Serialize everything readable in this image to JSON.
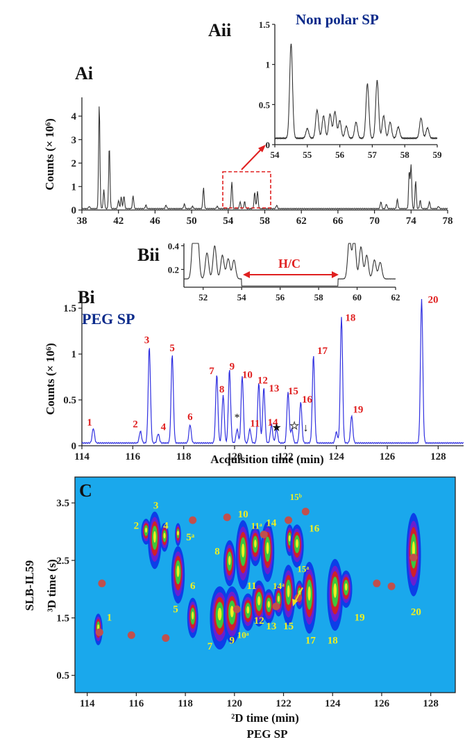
{
  "panels": {
    "ai": {
      "label": "Ai",
      "ylabel": "Counts (× 10⁶)"
    },
    "aii": {
      "label": "Aii",
      "phase": "Non polar SP"
    },
    "bii": {
      "label": "Bii",
      "annotation": "H/C"
    },
    "bi": {
      "label": "Bi",
      "phase": "PEG SP",
      "ylabel": "Counts (× 10⁶)",
      "xlabel": "Acquisition time (min)"
    },
    "c": {
      "label": "C",
      "column": "SLB-IL59",
      "ylabel": "³D time (s)",
      "xlabel": "²D time (min)",
      "phase": "PEG SP"
    }
  },
  "colors": {
    "trace_black": "#333333",
    "trace_blue": "#3030e0",
    "peak_label": "#e02020",
    "plot_bg": "#1aa8ec",
    "c_label": "#f0f020",
    "dot": "#c0504d"
  },
  "chart_data": [
    {
      "id": "Ai",
      "type": "line",
      "xlim": [
        38,
        78
      ],
      "xticks": [
        38,
        42,
        46,
        50,
        54,
        58,
        62,
        66,
        70,
        74,
        78
      ],
      "ylim": [
        0,
        4.8
      ],
      "yticks": [
        0,
        1,
        2,
        3,
        4
      ],
      "ylabel": "Counts (× 10⁶)",
      "baseline": 0.06,
      "peaks": [
        [
          38.8,
          0.1
        ],
        [
          39.9,
          4.45
        ],
        [
          40.4,
          0.8
        ],
        [
          41.0,
          2.65
        ],
        [
          42.0,
          0.35
        ],
        [
          42.3,
          0.5
        ],
        [
          42.6,
          0.55
        ],
        [
          43.6,
          0.55
        ],
        [
          45.0,
          0.15
        ],
        [
          47.2,
          0.15
        ],
        [
          49.2,
          0.2
        ],
        [
          50.1,
          0.1
        ],
        [
          51.3,
          0.9
        ],
        [
          52.8,
          0.1
        ],
        [
          54.4,
          1.15
        ],
        [
          55.3,
          0.3
        ],
        [
          55.8,
          0.3
        ],
        [
          56.9,
          0.7
        ],
        [
          57.2,
          0.75
        ],
        [
          59.3,
          0.15
        ],
        [
          70.7,
          0.3
        ],
        [
          71.3,
          0.2
        ],
        [
          72.5,
          0.4
        ],
        [
          73.8,
          1.6
        ],
        [
          74.0,
          1.85
        ],
        [
          74.5,
          1.2
        ],
        [
          75.0,
          0.35
        ],
        [
          76.0,
          0.3
        ],
        [
          77.0,
          0.1
        ]
      ]
    },
    {
      "id": "Aii",
      "type": "line",
      "xlim": [
        54,
        59
      ],
      "xticks": [
        54,
        55,
        56,
        57,
        58,
        59
      ],
      "ylim": [
        0,
        1.5
      ],
      "yticks": [
        0,
        0.5,
        1,
        1.5
      ],
      "baseline": 0.08,
      "peaks": [
        [
          54.5,
          1.18
        ],
        [
          55.0,
          0.12
        ],
        [
          55.3,
          0.35
        ],
        [
          55.5,
          0.28
        ],
        [
          55.7,
          0.3
        ],
        [
          55.85,
          0.33
        ],
        [
          56.0,
          0.22
        ],
        [
          56.2,
          0.15
        ],
        [
          56.5,
          0.2
        ],
        [
          56.85,
          0.68
        ],
        [
          57.15,
          0.72
        ],
        [
          57.35,
          0.28
        ],
        [
          57.55,
          0.2
        ],
        [
          57.8,
          0.14
        ],
        [
          58.5,
          0.25
        ],
        [
          58.7,
          0.13
        ]
      ]
    },
    {
      "id": "Bii",
      "type": "line",
      "xlim": [
        51,
        62
      ],
      "xticks": [
        52,
        54,
        56,
        58,
        60,
        62
      ],
      "ylim": [
        0.05,
        0.42
      ],
      "yticks": [
        0.2,
        0.4
      ],
      "annotation": "H/C",
      "heart_cut": [
        54,
        59
      ],
      "baseline": 0.12,
      "peaks": [
        [
          51.5,
          0.42
        ],
        [
          51.7,
          0.38
        ],
        [
          52.2,
          0.22
        ],
        [
          52.6,
          0.28
        ],
        [
          53.0,
          0.2
        ],
        [
          53.3,
          0.17
        ],
        [
          53.6,
          0.16
        ],
        [
          59.6,
          0.34
        ],
        [
          59.85,
          0.35
        ],
        [
          60.2,
          0.27
        ],
        [
          60.5,
          0.2
        ],
        [
          60.9,
          0.16
        ],
        [
          61.2,
          0.14
        ]
      ]
    },
    {
      "id": "Bi",
      "type": "line",
      "title": "PEG SP",
      "xlabel": "Acquisition time (min)",
      "ylabel": "Counts (× 10⁶)",
      "xlim": [
        114,
        129
      ],
      "xticks": [
        114,
        116,
        118,
        120,
        122,
        124,
        126,
        128
      ],
      "ylim": [
        0,
        1.6
      ],
      "yticks": [
        0,
        0.5,
        1,
        1.5
      ],
      "baseline": 0.03,
      "peaks": [
        [
          114.45,
          0.16
        ],
        [
          116.3,
          0.13
        ],
        [
          116.65,
          1.05
        ],
        [
          117.0,
          0.1
        ],
        [
          117.55,
          0.97
        ],
        [
          118.25,
          0.2
        ],
        [
          119.3,
          0.75
        ],
        [
          119.55,
          0.52
        ],
        [
          119.8,
          0.8
        ],
        [
          120.1,
          0.15
        ],
        [
          120.3,
          0.73
        ],
        [
          120.6,
          0.15
        ],
        [
          120.95,
          0.66
        ],
        [
          121.15,
          0.6
        ],
        [
          121.45,
          0.2
        ],
        [
          121.65,
          0.15
        ],
        [
          122.1,
          0.55
        ],
        [
          122.25,
          0.15
        ],
        [
          122.6,
          0.45
        ],
        [
          123.1,
          0.96
        ],
        [
          124.0,
          0.12
        ],
        [
          124.2,
          1.38
        ],
        [
          124.6,
          0.3
        ],
        [
          127.35,
          1.58
        ]
      ],
      "peak_labels": [
        {
          "n": "1",
          "x": 114.3,
          "y": 0.22
        },
        {
          "n": "2",
          "x": 116.1,
          "y": 0.2
        },
        {
          "n": "3",
          "x": 116.55,
          "y": 1.12
        },
        {
          "n": "4",
          "x": 117.2,
          "y": 0.17
        },
        {
          "n": "5",
          "x": 117.55,
          "y": 1.03
        },
        {
          "n": "6",
          "x": 118.25,
          "y": 0.28
        },
        {
          "n": "7",
          "x": 119.1,
          "y": 0.78
        },
        {
          "n": "8",
          "x": 119.5,
          "y": 0.58
        },
        {
          "n": "9",
          "x": 119.9,
          "y": 0.83
        },
        {
          "n": "10",
          "x": 120.5,
          "y": 0.74
        },
        {
          "n": "11",
          "x": 120.8,
          "y": 0.21
        },
        {
          "n": "12",
          "x": 121.1,
          "y": 0.68
        },
        {
          "n": "13",
          "x": 121.55,
          "y": 0.59
        },
        {
          "n": "14",
          "x": 121.5,
          "y": 0.22
        },
        {
          "n": "15",
          "x": 122.3,
          "y": 0.56
        },
        {
          "n": "16",
          "x": 122.85,
          "y": 0.47
        },
        {
          "n": "17",
          "x": 123.45,
          "y": 1.0
        },
        {
          "n": "18",
          "x": 124.55,
          "y": 1.36
        },
        {
          "n": "19",
          "x": 124.85,
          "y": 0.36
        },
        {
          "n": "20",
          "x": 127.8,
          "y": 1.56
        }
      ],
      "markers": [
        {
          "symbol": "*",
          "x": 120.1,
          "y": 0.27,
          "style": "black-star"
        },
        {
          "symbol": "★",
          "x": 121.65,
          "y": 0.16,
          "style": "black-filled-star"
        },
        {
          "symbol": "☆",
          "x": 122.35,
          "y": 0.18,
          "style": "white-star"
        },
        {
          "symbol": "↓",
          "x": 122.8,
          "y": 0.16,
          "style": "black-arrow"
        }
      ]
    },
    {
      "id": "C",
      "type": "heatmap",
      "xlabel": "²D time (min)",
      "ylabel": "³D time (s)",
      "xlim": [
        113.5,
        129
      ],
      "xticks": [
        114,
        116,
        118,
        120,
        122,
        124,
        126,
        128
      ],
      "ylim": [
        0.2,
        3.95
      ],
      "yticks": [
        0.5,
        1.5,
        2.5,
        3.5
      ],
      "peaks": [
        {
          "x": 114.45,
          "y": 1.3,
          "w": 0.35,
          "h": 0.55
        },
        {
          "x": 116.4,
          "y": 3.0,
          "w": 0.4,
          "h": 0.45
        },
        {
          "x": 116.75,
          "y": 2.85,
          "w": 0.55,
          "h": 1.0
        },
        {
          "x": 117.15,
          "y": 2.9,
          "w": 0.35,
          "h": 0.5
        },
        {
          "x": 117.7,
          "y": 2.95,
          "w": 0.25,
          "h": 0.4
        },
        {
          "x": 117.7,
          "y": 2.25,
          "w": 0.55,
          "h": 1.0
        },
        {
          "x": 118.3,
          "y": 1.5,
          "w": 0.45,
          "h": 0.7
        },
        {
          "x": 119.4,
          "y": 1.5,
          "w": 0.8,
          "h": 1.1
        },
        {
          "x": 119.9,
          "y": 1.55,
          "w": 0.7,
          "h": 1.0
        },
        {
          "x": 119.8,
          "y": 2.45,
          "w": 0.5,
          "h": 0.8
        },
        {
          "x": 120.35,
          "y": 2.6,
          "w": 0.6,
          "h": 1.2
        },
        {
          "x": 120.55,
          "y": 1.6,
          "w": 0.55,
          "h": 0.65
        },
        {
          "x": 120.85,
          "y": 2.75,
          "w": 0.5,
          "h": 0.7
        },
        {
          "x": 121.0,
          "y": 1.75,
          "w": 0.6,
          "h": 0.8
        },
        {
          "x": 121.35,
          "y": 2.65,
          "w": 0.55,
          "h": 1.05
        },
        {
          "x": 121.4,
          "y": 1.7,
          "w": 0.5,
          "h": 0.6
        },
        {
          "x": 121.8,
          "y": 1.8,
          "w": 0.4,
          "h": 0.55
        },
        {
          "x": 122.2,
          "y": 1.9,
          "w": 0.55,
          "h": 1.05
        },
        {
          "x": 122.25,
          "y": 2.85,
          "w": 0.35,
          "h": 0.55
        },
        {
          "x": 122.55,
          "y": 2.75,
          "w": 0.55,
          "h": 0.75
        },
        {
          "x": 122.65,
          "y": 1.9,
          "w": 0.35,
          "h": 0.5
        },
        {
          "x": 123.05,
          "y": 1.85,
          "w": 0.6,
          "h": 1.25
        },
        {
          "x": 124.1,
          "y": 1.9,
          "w": 0.65,
          "h": 1.25
        },
        {
          "x": 124.55,
          "y": 2.0,
          "w": 0.5,
          "h": 0.65
        },
        {
          "x": 127.3,
          "y": 2.6,
          "w": 0.6,
          "h": 1.45
        }
      ],
      "dots": [
        [
          114.6,
          2.1
        ],
        [
          114.5,
          1.25
        ],
        [
          115.8,
          1.2
        ],
        [
          117.2,
          1.15
        ],
        [
          118.3,
          3.2
        ],
        [
          119.7,
          3.25
        ],
        [
          122.2,
          3.2
        ],
        [
          122.9,
          3.35
        ],
        [
          121.2,
          2.95
        ],
        [
          125.8,
          2.1
        ],
        [
          126.4,
          2.05
        ],
        [
          127.3,
          2.55
        ],
        [
          121.7,
          1.7
        ],
        [
          120.1,
          1.65
        ],
        [
          122.6,
          1.85
        ]
      ],
      "labels": [
        {
          "t": "1",
          "x": 114.9,
          "y": 1.45
        },
        {
          "t": "2",
          "x": 116.0,
          "y": 3.05
        },
        {
          "t": "3",
          "x": 116.8,
          "y": 3.4
        },
        {
          "t": "4",
          "x": 117.2,
          "y": 3.05
        },
        {
          "t": "5ᵃ",
          "x": 118.2,
          "y": 2.85
        },
        {
          "t": "5",
          "x": 117.6,
          "y": 1.6
        },
        {
          "t": "6",
          "x": 118.3,
          "y": 2.0
        },
        {
          "t": "7",
          "x": 119.0,
          "y": 0.95
        },
        {
          "t": "8",
          "x": 119.3,
          "y": 2.6
        },
        {
          "t": "9",
          "x": 119.9,
          "y": 1.05
        },
        {
          "t": "10",
          "x": 120.35,
          "y": 3.25
        },
        {
          "t": "10ᵃ",
          "x": 120.35,
          "y": 1.15
        },
        {
          "t": "11ᵃ",
          "x": 120.9,
          "y": 3.05
        },
        {
          "t": "11",
          "x": 120.7,
          "y": 2.0
        },
        {
          "t": "12",
          "x": 121.0,
          "y": 1.4
        },
        {
          "t": "13",
          "x": 121.5,
          "y": 1.3
        },
        {
          "t": "14",
          "x": 121.5,
          "y": 3.1
        },
        {
          "t": "14ᵃ",
          "x": 121.8,
          "y": 2.0
        },
        {
          "t": "15ᵇ",
          "x": 122.5,
          "y": 3.55
        },
        {
          "t": "15ᵃ",
          "x": 122.8,
          "y": 2.3
        },
        {
          "t": "15",
          "x": 122.2,
          "y": 1.3
        },
        {
          "t": "16",
          "x": 123.25,
          "y": 3.0
        },
        {
          "t": "17",
          "x": 123.1,
          "y": 1.05
        },
        {
          "t": "18",
          "x": 124.0,
          "y": 1.05
        },
        {
          "t": "19",
          "x": 125.1,
          "y": 1.45
        },
        {
          "t": "20",
          "x": 127.4,
          "y": 1.55
        }
      ]
    }
  ]
}
